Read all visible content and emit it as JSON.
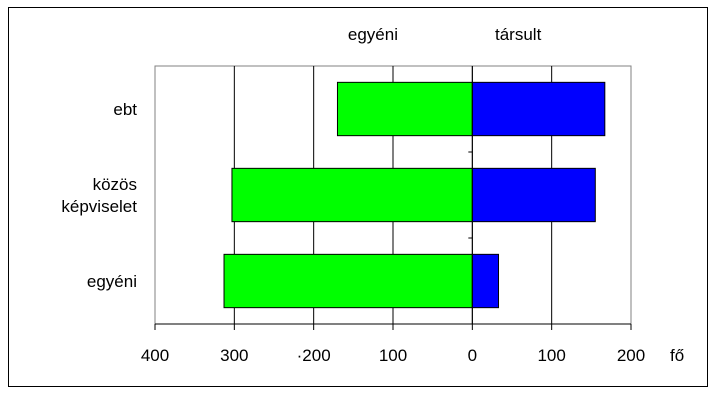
{
  "chart_data": {
    "type": "bar",
    "orientation": "horizontal",
    "stacked": "diverging",
    "categories": [
      "ebt",
      "közös képviselet",
      "egyéni"
    ],
    "category_label_lines": [
      [
        "ebt"
      ],
      [
        "közös",
        "képviselet"
      ],
      [
        "egyéni"
      ]
    ],
    "series": [
      {
        "name": "egyéni",
        "values": [
          -170,
          -303,
          -313
        ],
        "color": "#00ff00"
      },
      {
        "name": "társult",
        "values": [
          167,
          155,
          33
        ],
        "color": "#0000ff"
      }
    ],
    "xlim": [
      -400,
      200
    ],
    "tick_values": [
      -400,
      -300,
      -200,
      -100,
      0,
      100,
      200
    ],
    "tick_labels": [
      "400",
      "300",
      "·200",
      "100",
      "0",
      "100",
      "200"
    ],
    "xlabel": "fő",
    "grid": true,
    "legend": "top"
  }
}
